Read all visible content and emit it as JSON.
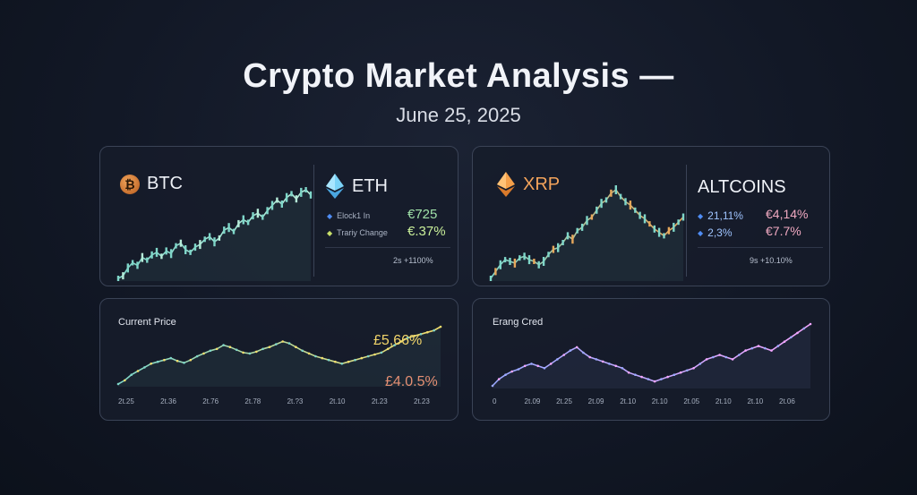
{
  "header": {
    "title": "Crypto Market Analysis —",
    "subtitle": "June 25, 2025"
  },
  "panel_top_left": {
    "btc_label": "BTC",
    "eth_label": "ETH",
    "rows": [
      {
        "label": "Elock1 In",
        "value": "€725",
        "bullet_color": "#4f8df5",
        "value_color": "#9fe0a8"
      },
      {
        "label": "Trariy Change",
        "value": "€.37%",
        "bullet_color": "#c8e06a",
        "value_color": "#c9ef9a"
      }
    ],
    "footer": "2s +1100%"
  },
  "panel_top_right": {
    "xrp_label": "XRP",
    "altcoins_label": "ALTCOINS",
    "rows": [
      {
        "label": "21,11%",
        "value": "€4,14%",
        "bullet_color": "#4f8df5",
        "value_color": "#f0a9c1"
      },
      {
        "label": "2,3%",
        "value": "€7.7%",
        "bullet_color": "#4f8df5",
        "value_color": "#f0a9c1"
      }
    ],
    "footer": "9s +10.10%"
  },
  "panel_bottom_left": {
    "label": "Current Price",
    "value_top": "£5,66%",
    "value_bottom": "£4.0.5%",
    "ticks": [
      "2t.25",
      "2t.36",
      "2t.76",
      "2t.78",
      "2t.?3",
      "2t.10",
      "2t.23",
      "2t.23"
    ]
  },
  "panel_bottom_right": {
    "label": "Erang Cred",
    "ticks": [
      "0",
      "2t.09",
      "2t.25",
      "2t.09",
      "2t.10",
      "2t.10",
      "2t.05",
      "2t.10",
      "2t.10",
      "2t.06"
    ]
  },
  "colors": {
    "btc_chart": "#7fd6c9",
    "eth_chart": "#e6a75b",
    "price_line_start": "#7fd6c9",
    "price_line_end": "#f2dd6c",
    "price_top_value": "#f2d56a",
    "price_bottom_value": "#e58f73",
    "range_line_start": "#9aa8ff",
    "range_line_end": "#f2a6ff"
  },
  "chart_data": [
    {
      "type": "line",
      "title": "",
      "x": [
        0,
        1,
        2,
        3,
        4,
        5,
        6,
        7,
        8,
        9,
        10,
        11,
        12,
        13,
        14,
        15,
        16,
        17,
        18,
        19,
        20,
        21,
        22,
        23,
        24,
        25,
        26,
        27,
        28,
        29,
        30,
        31,
        32,
        33,
        34,
        35,
        36,
        37,
        38,
        39,
        40
      ],
      "series": [
        {
          "values": [
            10,
            12,
            18,
            22,
            20,
            26,
            24,
            28,
            30,
            27,
            31,
            29,
            35,
            37,
            32,
            30,
            34,
            36,
            40,
            42,
            38,
            41,
            47,
            49,
            46,
            52,
            55,
            53,
            58,
            60,
            57,
            62,
            66,
            70,
            67,
            72,
            75,
            71,
            76,
            78,
            74
          ]
        }
      ]
    },
    {
      "type": "line",
      "title": "",
      "x": [
        0,
        1,
        2,
        3,
        4,
        5,
        6,
        7,
        8,
        9,
        10,
        11,
        12,
        13,
        14,
        15,
        16,
        17,
        18,
        19,
        20,
        21,
        22,
        23,
        24,
        25,
        26,
        27,
        28,
        29,
        30,
        31,
        32,
        33,
        34,
        35,
        36,
        37,
        38,
        39,
        40
      ],
      "series": [
        {
          "values": [
            20,
            24,
            28,
            31,
            30,
            29,
            32,
            33,
            31,
            30,
            28,
            30,
            34,
            37,
            38,
            41,
            45,
            43,
            48,
            50,
            54,
            56,
            60,
            64,
            66,
            70,
            72,
            68,
            65,
            63,
            60,
            57,
            55,
            52,
            49,
            47,
            45,
            48,
            50,
            53,
            56
          ]
        }
      ]
    },
    {
      "type": "line",
      "title": "",
      "x": [
        0,
        1,
        2,
        3,
        4,
        5,
        6,
        7,
        8,
        9,
        10,
        11,
        12,
        13,
        14,
        15,
        16,
        17,
        18,
        19,
        20,
        21,
        22,
        23,
        24,
        25,
        26,
        27,
        28,
        29,
        30,
        31,
        32,
        33,
        34,
        35,
        36,
        37,
        38,
        39,
        40,
        41,
        42,
        43,
        44,
        45,
        46,
        47,
        48,
        49
      ],
      "series": [
        {
          "values": [
            12,
            16,
            22,
            26,
            30,
            34,
            36,
            38,
            40,
            37,
            35,
            38,
            42,
            45,
            48,
            50,
            54,
            52,
            49,
            46,
            45,
            47,
            50,
            52,
            55,
            58,
            56,
            52,
            48,
            45,
            42,
            40,
            38,
            36,
            34,
            36,
            38,
            40,
            42,
            44,
            46,
            50,
            54,
            58,
            62,
            64,
            66,
            68,
            70,
            74
          ]
        }
      ]
    },
    {
      "type": "line",
      "title": "",
      "x": [
        0,
        1,
        2,
        3,
        4,
        5,
        6,
        7,
        8,
        9,
        10,
        11,
        12,
        13,
        14,
        15,
        16,
        17,
        18,
        19,
        20,
        21,
        22,
        23,
        24,
        25,
        26,
        27,
        28,
        29,
        30,
        31,
        32,
        33,
        34,
        35,
        36,
        37,
        38,
        39,
        40,
        41,
        42,
        43,
        44,
        45,
        46,
        47,
        48,
        49
      ],
      "series": [
        {
          "values": [
            20,
            26,
            30,
            33,
            35,
            38,
            40,
            38,
            36,
            40,
            44,
            48,
            52,
            55,
            50,
            46,
            44,
            42,
            40,
            38,
            36,
            32,
            30,
            28,
            26,
            24,
            26,
            28,
            30,
            32,
            34,
            36,
            40,
            44,
            46,
            48,
            46,
            44,
            48,
            52,
            54,
            56,
            54,
            52,
            56,
            60,
            64,
            68,
            72,
            76
          ]
        }
      ]
    }
  ]
}
